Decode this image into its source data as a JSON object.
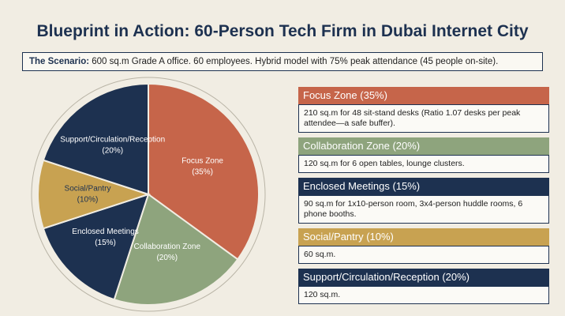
{
  "title": "Blueprint in Action: 60-Person Tech Firm in Dubai Internet City",
  "scenario": {
    "label": "The Scenario:",
    "text": "600 sq.m Grade A office. 60 employees. Hybrid model with 75% peak attendance (45 people on-site)."
  },
  "chart_data": {
    "type": "pie",
    "categories": [
      "Focus Zone",
      "Collaboration Zone",
      "Enclosed Meetings",
      "Social/Pantry",
      "Support/Circulation/Reception"
    ],
    "values": [
      35,
      20,
      15,
      10,
      20
    ],
    "value_labels": [
      "(35%)",
      "(20%)",
      "(15%)",
      "(10%)",
      "(20%)"
    ],
    "colors": [
      "#c6654a",
      "#8ea47d",
      "#1d3150",
      "#c8a251",
      "#1d3150"
    ]
  },
  "zones": [
    {
      "title": "Focus Zone (35%)",
      "text": "210 sq.m for 48 sit-stand desks (Ratio 1.07 desks per peak attendee—a safe buffer)."
    },
    {
      "title": "Collaboration Zone (20%)",
      "text": "120 sq.m for 6 open tables, lounge clusters."
    },
    {
      "title": "Enclosed Meetings (15%)",
      "text": "90 sq.m for 1x10-person room, 3x4-person huddle rooms, 6 phone booths."
    },
    {
      "title": "Social/Pantry (10%)",
      "text": "60 sq.m."
    },
    {
      "title": "Support/Circulation/Reception (20%)",
      "text": "120 sq.m."
    }
  ]
}
